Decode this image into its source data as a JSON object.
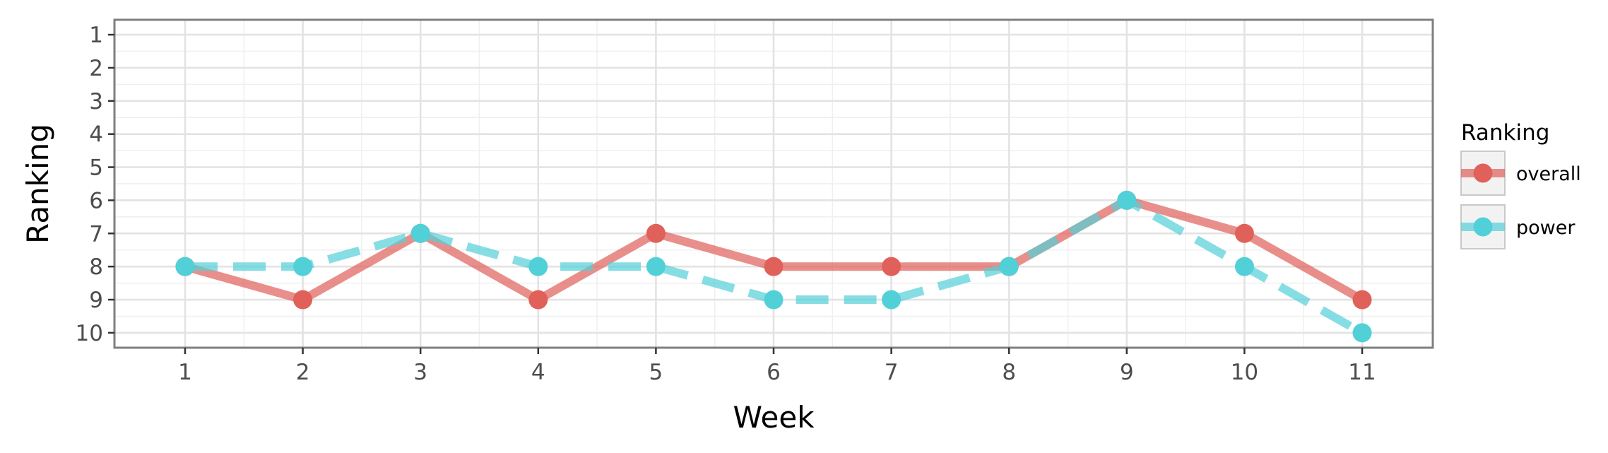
{
  "chart_data": {
    "type": "line",
    "title": "",
    "xlabel": "Week",
    "ylabel": "Ranking",
    "x": [
      1,
      2,
      3,
      4,
      5,
      6,
      7,
      8,
      9,
      10,
      11
    ],
    "xlim": [
      0.4,
      11.6
    ],
    "ylim": [
      10.45,
      0.55
    ],
    "y_reversed": true,
    "x_ticks": [
      "1",
      "2",
      "3",
      "4",
      "5",
      "6",
      "7",
      "8",
      "9",
      "10",
      "11"
    ],
    "y_ticks": [
      "1",
      "2",
      "3",
      "4",
      "5",
      "6",
      "7",
      "8",
      "9",
      "10"
    ],
    "grid": true,
    "legend": {
      "title": "Ranking",
      "placement": "right"
    },
    "series": [
      {
        "name": "overall",
        "values": [
          8,
          9,
          7,
          9,
          7,
          8,
          8,
          8,
          6,
          7,
          9
        ],
        "color": "#e0605a",
        "line_style": "solid"
      },
      {
        "name": "power",
        "values": [
          8,
          8,
          7,
          8,
          8,
          9,
          9,
          8,
          6,
          8,
          10
        ],
        "color": "#52d0d8",
        "line_style": "dashed"
      }
    ]
  }
}
